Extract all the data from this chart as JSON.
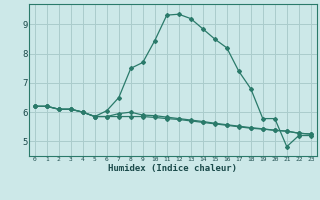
{
  "title": "",
  "xlabel": "Humidex (Indice chaleur)",
  "bg_color": "#cce8e8",
  "grid_color": "#aacccc",
  "line_color": "#2a7a6a",
  "text_color": "#1a4a4a",
  "xlim": [
    -0.5,
    23.5
  ],
  "ylim": [
    4.5,
    9.7
  ],
  "xticks": [
    0,
    1,
    2,
    3,
    4,
    5,
    6,
    7,
    8,
    9,
    10,
    11,
    12,
    13,
    14,
    15,
    16,
    17,
    18,
    19,
    20,
    21,
    22,
    23
  ],
  "yticks": [
    5,
    6,
    7,
    8,
    9
  ],
  "curve1_x": [
    0,
    1,
    2,
    3,
    4,
    5,
    6,
    7,
    8,
    9,
    10,
    11,
    12,
    13,
    14,
    15,
    16,
    17,
    18,
    19,
    20,
    21,
    22,
    23
  ],
  "curve1_y": [
    6.2,
    6.2,
    6.1,
    6.1,
    6.0,
    5.85,
    5.85,
    5.85,
    5.85,
    5.85,
    5.82,
    5.78,
    5.75,
    5.7,
    5.65,
    5.6,
    5.55,
    5.5,
    5.45,
    5.42,
    5.38,
    5.35,
    5.28,
    5.25
  ],
  "curve2_x": [
    0,
    1,
    2,
    3,
    4,
    5,
    6,
    7,
    8,
    9,
    10,
    11,
    12,
    13,
    14,
    15,
    16,
    17,
    18,
    19,
    20,
    21,
    22,
    23
  ],
  "curve2_y": [
    6.2,
    6.2,
    6.1,
    6.1,
    6.0,
    5.85,
    6.05,
    6.5,
    7.5,
    7.7,
    8.45,
    9.32,
    9.35,
    9.2,
    8.85,
    8.5,
    8.2,
    7.4,
    6.8,
    5.78,
    5.78,
    4.82,
    5.2,
    5.2
  ],
  "curve3_x": [
    0,
    1,
    2,
    3,
    4,
    5,
    6,
    7,
    8,
    9,
    10,
    11,
    12,
    13,
    14,
    15,
    16,
    17,
    18,
    19,
    20,
    21,
    22,
    23
  ],
  "curve3_y": [
    6.2,
    6.2,
    6.1,
    6.1,
    6.0,
    5.85,
    5.85,
    5.95,
    6.0,
    5.9,
    5.88,
    5.83,
    5.78,
    5.73,
    5.68,
    5.62,
    5.57,
    5.52,
    5.47,
    5.43,
    5.38,
    5.35,
    5.28,
    5.25
  ]
}
